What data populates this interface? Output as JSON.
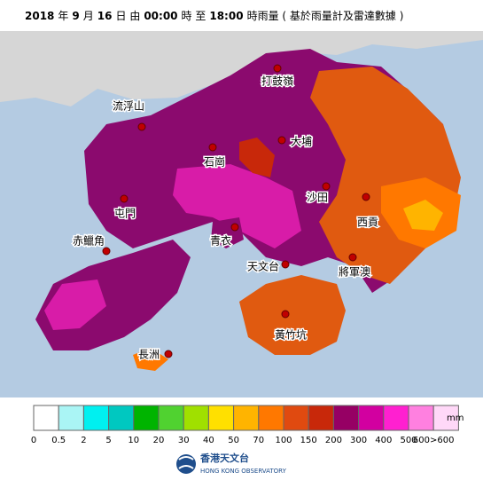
{
  "header": {
    "title": [
      {
        "text": "2018",
        "bold": true
      },
      {
        "text": "年",
        "bold": false
      },
      {
        "text": "9",
        "bold": true
      },
      {
        "text": "月",
        "bold": false
      },
      {
        "text": "16",
        "bold": true
      },
      {
        "text": "日 由",
        "bold": false
      },
      {
        "text": "00:00",
        "bold": true
      },
      {
        "text": "時 至",
        "bold": false
      },
      {
        "text": "18:00",
        "bold": true
      },
      {
        "text": "時雨量 ( 基於雨量計及雷達數據 )",
        "bold": false
      }
    ]
  },
  "places": [
    "流浮山",
    "打鼓嶺",
    "大埔",
    "石崗",
    "屯門",
    "沙田",
    "西貢",
    "青衣",
    "赤鱲角",
    "天文台",
    "將軍澳",
    "黃竹坑",
    "長洲"
  ],
  "legend": {
    "unit": "mm",
    "colors": [
      "#ffffff",
      "#aaf5f5",
      "#00f0f0",
      "#00c8c0",
      "#00b400",
      "#50d230",
      "#a0e000",
      "#ffe000",
      "#ffb400",
      "#ff7800",
      "#e04a10",
      "#c8280a",
      "#960064",
      "#d200a0",
      "#ff20d0",
      "#ff80e0",
      "#ffd8f8"
    ],
    "labels": [
      0,
      0.5,
      2,
      5,
      10,
      20,
      30,
      40,
      50,
      70,
      100,
      150,
      200,
      300,
      400,
      500,
      "600>600"
    ]
  },
  "logo": {
    "name": "香港天文台",
    "english": "HONG KONG OBSERVATORY"
  }
}
